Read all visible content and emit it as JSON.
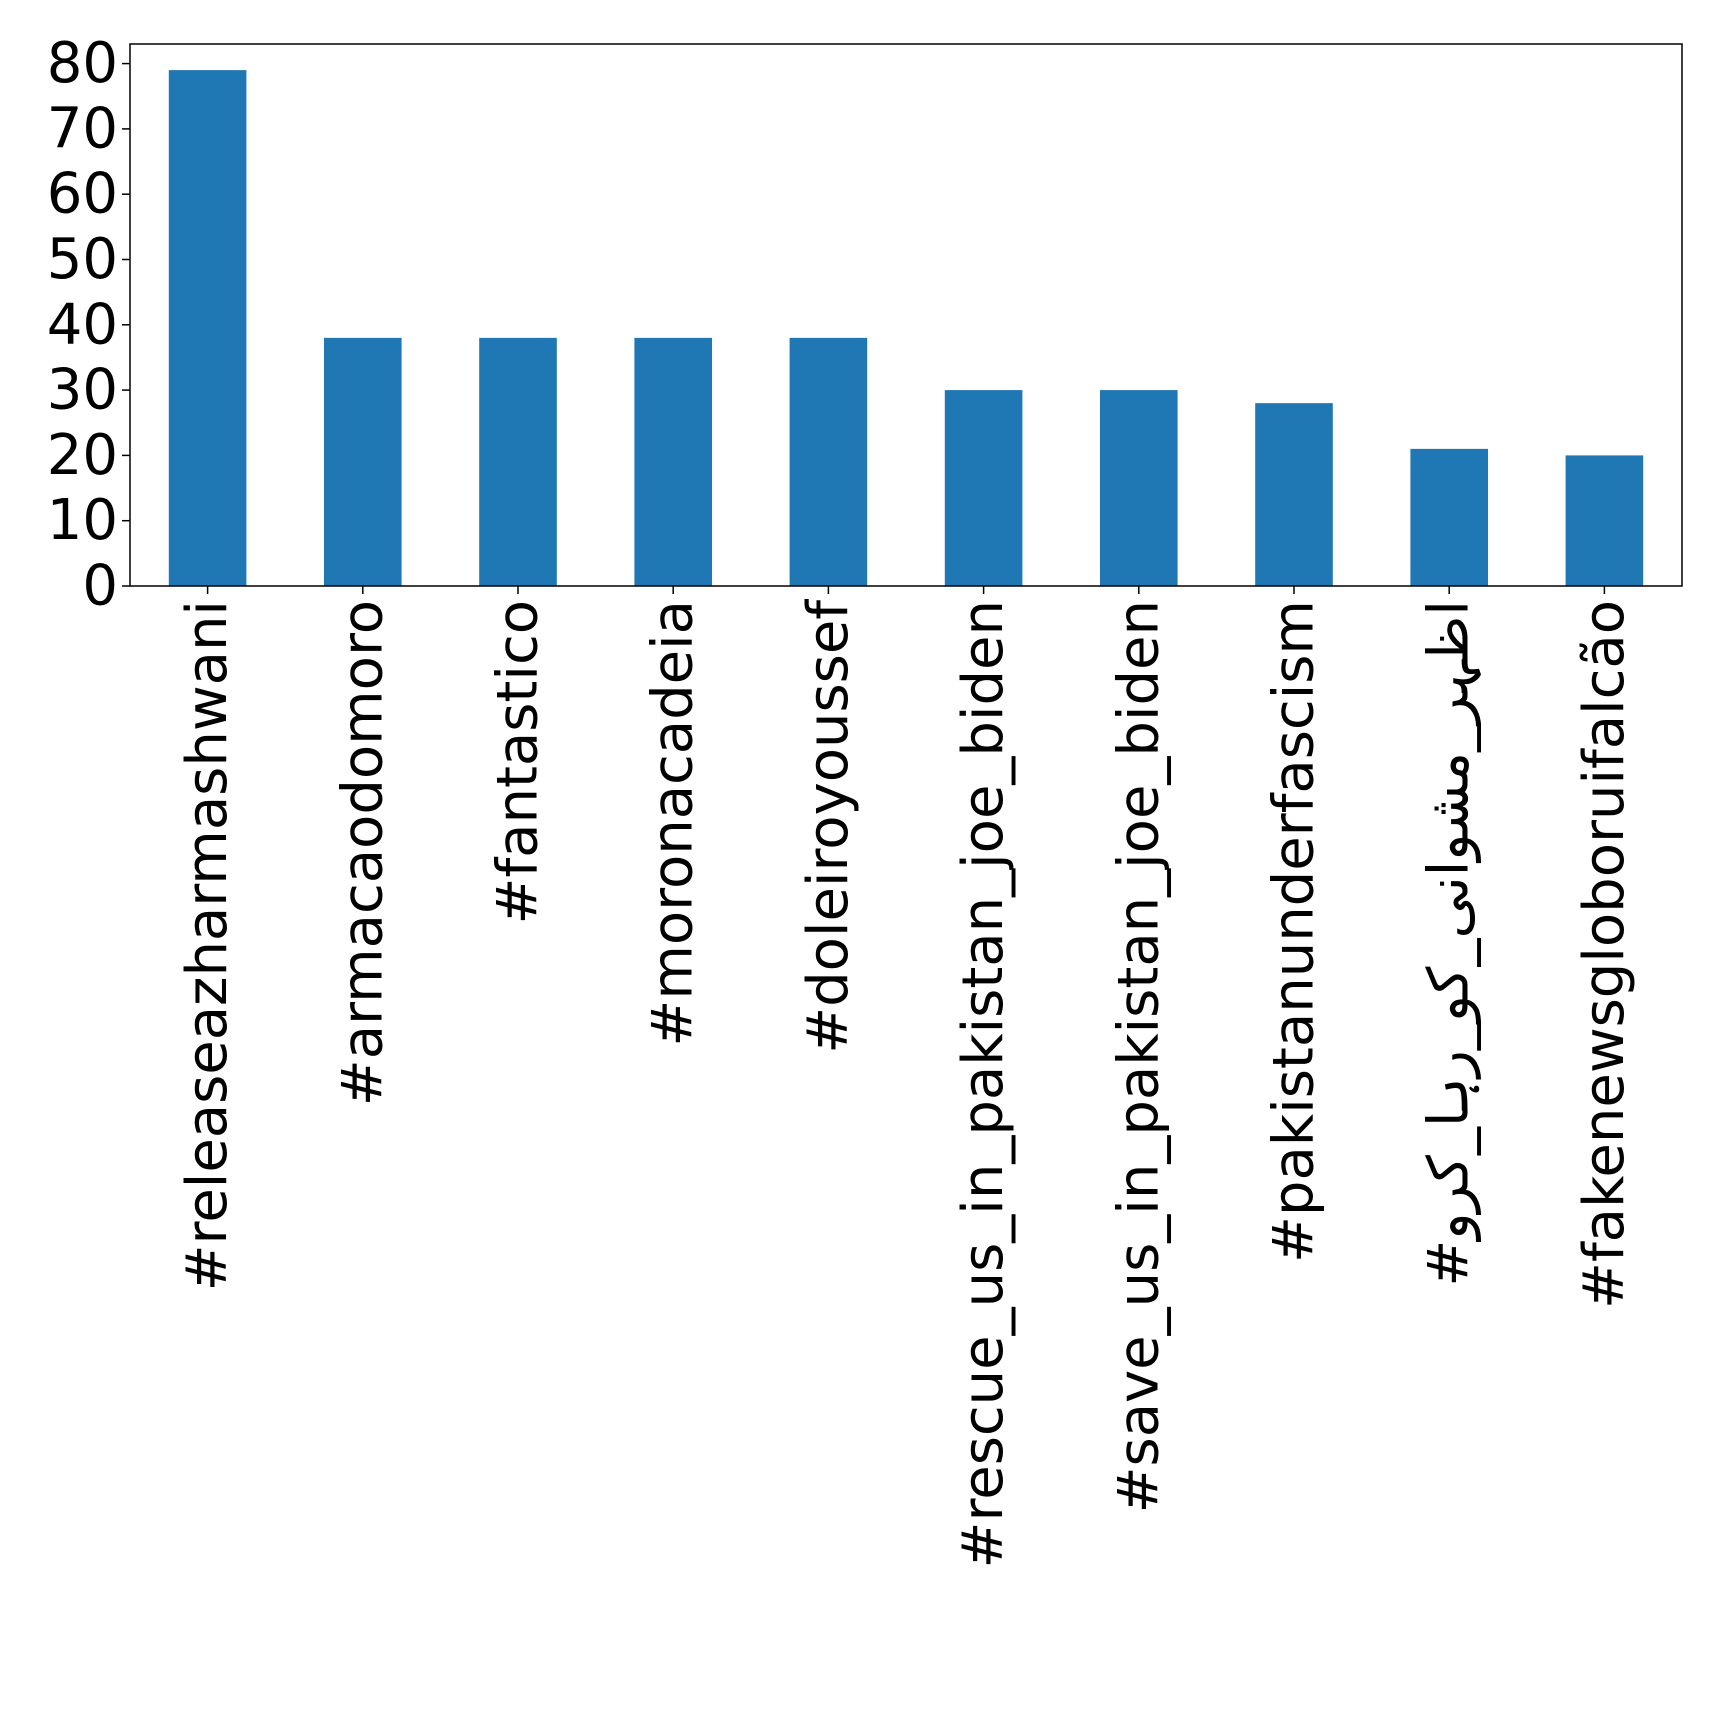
{
  "chart_data": {
    "type": "bar",
    "title": "",
    "xlabel": "",
    "ylabel": "",
    "categories": [
      "#releaseazharmashwani",
      "#armacaodomoro",
      "#fantastico",
      "#moronacadeia",
      "#doleiroyoussef",
      "#rescue_us_in_pakistan_joe_biden",
      "#save_us_in_pakistan_joe_biden",
      "#pakistanunderfascism",
      "#اظہر_مشوانی_کو_رہا_کرو",
      "#fakenewsgloboruifalcão"
    ],
    "values": [
      79,
      38,
      38,
      38,
      38,
      30,
      30,
      28,
      21,
      20
    ],
    "ylim": [
      0,
      83
    ],
    "yticks": [
      0,
      10,
      20,
      30,
      40,
      50,
      60,
      70,
      80
    ],
    "grid": false,
    "legend": "none",
    "bar_color": "#1f77b4"
  }
}
